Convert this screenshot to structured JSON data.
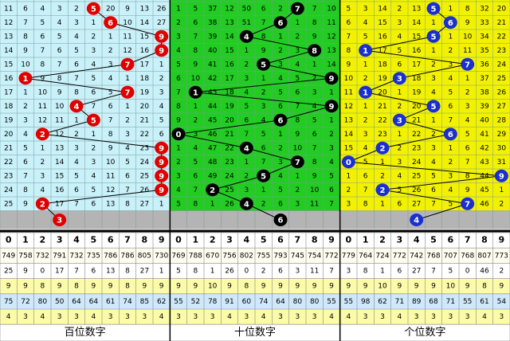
{
  "columns": [
    0,
    1,
    2,
    3,
    4,
    5,
    6,
    7,
    8,
    9
  ],
  "sections": [
    {
      "label": "百位数字",
      "rows": [
        {
          "cells": [
            11,
            6,
            4,
            3,
            2,
            5,
            20,
            9,
            13,
            26
          ],
          "hit": 5
        },
        {
          "cells": [
            12,
            7,
            5,
            4,
            3,
            1,
            6,
            10,
            14,
            27
          ],
          "hit": 6
        },
        {
          "cells": [
            13,
            8,
            6,
            5,
            4,
            2,
            1,
            11,
            15,
            9
          ],
          "hit": 9
        },
        {
          "cells": [
            14,
            9,
            7,
            6,
            5,
            3,
            2,
            12,
            16,
            9
          ],
          "hit": 9
        },
        {
          "cells": [
            15,
            10,
            8,
            7,
            6,
            4,
            3,
            7,
            17,
            1
          ],
          "hit": 7
        },
        {
          "cells": [
            16,
            1,
            9,
            8,
            7,
            5,
            4,
            1,
            18,
            2
          ],
          "hit": 1
        },
        {
          "cells": [
            17,
            1,
            10,
            9,
            8,
            6,
            5,
            7,
            19,
            3
          ],
          "hit": 7
        },
        {
          "cells": [
            18,
            2,
            11,
            10,
            4,
            7,
            6,
            1,
            20,
            4
          ],
          "hit": 4
        },
        {
          "cells": [
            19,
            3,
            12,
            11,
            1,
            5,
            7,
            2,
            21,
            5
          ],
          "hit": 5
        },
        {
          "cells": [
            20,
            4,
            2,
            12,
            2,
            1,
            8,
            3,
            22,
            6
          ],
          "hit": 2
        },
        {
          "cells": [
            21,
            5,
            1,
            13,
            3,
            2,
            9,
            4,
            23,
            9
          ],
          "hit": 9
        },
        {
          "cells": [
            22,
            6,
            2,
            14,
            4,
            3,
            10,
            5,
            24,
            9
          ],
          "hit": 9
        },
        {
          "cells": [
            23,
            7,
            3,
            15,
            5,
            4,
            11,
            6,
            25,
            9
          ],
          "hit": 9
        },
        {
          "cells": [
            24,
            8,
            4,
            16,
            6,
            5,
            12,
            7,
            26,
            9
          ],
          "hit": 9
        },
        {
          "cells": [
            25,
            9,
            2,
            17,
            7,
            6,
            13,
            8,
            27,
            1
          ],
          "hit": 2
        }
      ],
      "next": 3,
      "stats": [
        [
          749,
          758,
          732,
          791,
          732,
          735,
          786,
          786,
          805,
          730
        ],
        [
          25,
          9,
          0,
          17,
          7,
          6,
          13,
          8,
          27,
          1
        ],
        [
          9,
          9,
          8,
          9,
          8,
          9,
          9,
          8,
          9,
          9
        ],
        [
          75,
          72,
          80,
          50,
          64,
          64,
          61,
          74,
          85,
          62
        ],
        [
          4,
          3,
          4,
          3,
          3,
          4,
          3,
          3,
          3,
          4
        ]
      ]
    },
    {
      "label": "十位数字",
      "rows": [
        {
          "cells": [
            1,
            5,
            37,
            12,
            50,
            6,
            2,
            7,
            7,
            10
          ],
          "hit": 7
        },
        {
          "cells": [
            2,
            6,
            38,
            13,
            51,
            7,
            6,
            1,
            8,
            11
          ],
          "hit": 6
        },
        {
          "cells": [
            3,
            7,
            39,
            14,
            4,
            8,
            1,
            2,
            9,
            12
          ],
          "hit": 4
        },
        {
          "cells": [
            4,
            8,
            40,
            15,
            1,
            9,
            2,
            3,
            8,
            13
          ],
          "hit": 8
        },
        {
          "cells": [
            5,
            9,
            41,
            16,
            2,
            5,
            3,
            4,
            1,
            14
          ],
          "hit": 5
        },
        {
          "cells": [
            6,
            10,
            42,
            17,
            3,
            1,
            4,
            5,
            2,
            9
          ],
          "hit": 9
        },
        {
          "cells": [
            7,
            1,
            43,
            18,
            4,
            2,
            5,
            6,
            3,
            1
          ],
          "hit": 1
        },
        {
          "cells": [
            8,
            1,
            44,
            19,
            5,
            3,
            6,
            7,
            4,
            9
          ],
          "hit": 9
        },
        {
          "cells": [
            9,
            2,
            45,
            20,
            6,
            4,
            6,
            8,
            5,
            1
          ],
          "hit": 6
        },
        {
          "cells": [
            0,
            3,
            46,
            21,
            7,
            5,
            1,
            9,
            6,
            2
          ],
          "hit": 0
        },
        {
          "cells": [
            1,
            4,
            47,
            22,
            4,
            6,
            2,
            10,
            7,
            3
          ],
          "hit": 4
        },
        {
          "cells": [
            2,
            5,
            48,
            23,
            1,
            7,
            3,
            7,
            8,
            4
          ],
          "hit": 7
        },
        {
          "cells": [
            3,
            6,
            49,
            24,
            2,
            5,
            4,
            1,
            9,
            5
          ],
          "hit": 5
        },
        {
          "cells": [
            4,
            7,
            2,
            25,
            3,
            1,
            5,
            2,
            10,
            6
          ],
          "hit": 2
        },
        {
          "cells": [
            5,
            8,
            1,
            26,
            4,
            2,
            6,
            3,
            11,
            7
          ],
          "hit": 4
        }
      ],
      "next": 6,
      "stats": [
        [
          769,
          788,
          670,
          756,
          802,
          755,
          793,
          745,
          754,
          772
        ],
        [
          5,
          8,
          1,
          26,
          0,
          2,
          6,
          3,
          11,
          7
        ],
        [
          9,
          9,
          10,
          9,
          8,
          9,
          9,
          9,
          9,
          9
        ],
        [
          55,
          52,
          78,
          91,
          60,
          74,
          64,
          80,
          80,
          55
        ],
        [
          3,
          3,
          3,
          4,
          3,
          4,
          3,
          3,
          3,
          4
        ]
      ]
    },
    {
      "label": "个位数字",
      "rows": [
        {
          "cells": [
            5,
            3,
            14,
            2,
            13,
            5,
            1,
            8,
            32,
            20
          ],
          "hit": 5
        },
        {
          "cells": [
            6,
            4,
            15,
            3,
            14,
            1,
            6,
            9,
            33,
            21
          ],
          "hit": 6
        },
        {
          "cells": [
            7,
            5,
            16,
            4,
            15,
            5,
            1,
            10,
            34,
            22
          ],
          "hit": 5
        },
        {
          "cells": [
            8,
            1,
            17,
            5,
            16,
            1,
            2,
            11,
            35,
            23
          ],
          "hit": 1
        },
        {
          "cells": [
            9,
            1,
            18,
            6,
            17,
            2,
            3,
            7,
            36,
            24
          ],
          "hit": 7
        },
        {
          "cells": [
            10,
            2,
            19,
            3,
            18,
            3,
            4,
            1,
            37,
            25
          ],
          "hit": 3
        },
        {
          "cells": [
            11,
            1,
            20,
            1,
            19,
            4,
            5,
            2,
            38,
            26
          ],
          "hit": 1
        },
        {
          "cells": [
            12,
            1,
            21,
            2,
            20,
            5,
            6,
            3,
            39,
            27
          ],
          "hit": 5
        },
        {
          "cells": [
            13,
            2,
            22,
            3,
            21,
            1,
            7,
            4,
            40,
            28
          ],
          "hit": 3
        },
        {
          "cells": [
            14,
            3,
            23,
            1,
            22,
            2,
            6,
            5,
            41,
            29
          ],
          "hit": 6
        },
        {
          "cells": [
            15,
            4,
            2,
            2,
            23,
            3,
            1,
            6,
            42,
            30
          ],
          "hit": 2
        },
        {
          "cells": [
            0,
            5,
            1,
            3,
            24,
            4,
            2,
            7,
            43,
            31
          ],
          "hit": 0
        },
        {
          "cells": [
            1,
            6,
            2,
            4,
            25,
            5,
            3,
            8,
            44,
            9
          ],
          "hit": 9
        },
        {
          "cells": [
            2,
            7,
            2,
            5,
            26,
            6,
            4,
            9,
            45,
            1
          ],
          "hit": 2
        },
        {
          "cells": [
            3,
            8,
            1,
            6,
            27,
            7,
            5,
            7,
            46,
            2
          ],
          "hit": 7
        }
      ],
      "next": 4,
      "stats": [
        [
          779,
          764,
          724,
          772,
          742,
          768,
          707,
          768,
          807,
          773
        ],
        [
          3,
          8,
          1,
          6,
          27,
          7,
          5,
          0,
          46,
          2
        ],
        [
          9,
          9,
          10,
          9,
          9,
          9,
          10,
          9,
          8,
          9
        ],
        [
          55,
          98,
          62,
          71,
          89,
          68,
          71,
          55,
          61,
          54
        ],
        [
          4,
          3,
          3,
          4,
          3,
          3,
          3,
          3,
          4,
          3
        ]
      ]
    }
  ]
}
